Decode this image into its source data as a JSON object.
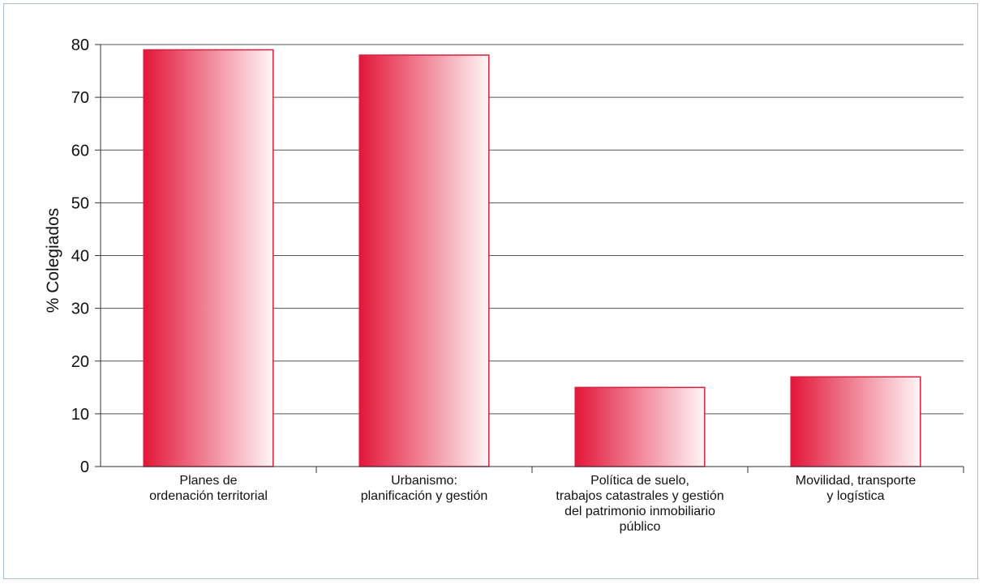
{
  "chart_data": {
    "type": "bar",
    "ylabel": "% Colegiados",
    "ylim": [
      0,
      80
    ],
    "yticks": [
      0,
      10,
      20,
      30,
      40,
      50,
      60,
      70,
      80
    ],
    "grid": true,
    "categories": [
      [
        "Planes de",
        "ordenación territorial"
      ],
      [
        "Urbanismo:",
        "planificación y gestión"
      ],
      [
        "Política de suelo,",
        "trabajos catastrales y gestión",
        "del patrimonio inmobiliario",
        "público"
      ],
      [
        "Movilidad, transporte",
        "y logística"
      ]
    ],
    "values": [
      79,
      78,
      15,
      17
    ],
    "colors": {
      "bar_start": "#e2173a",
      "bar_end": "#fff6f7",
      "bar_border": "#d81f3d",
      "grid": "#555555",
      "axis": "#333333",
      "frame": "#a9bfd2"
    }
  }
}
